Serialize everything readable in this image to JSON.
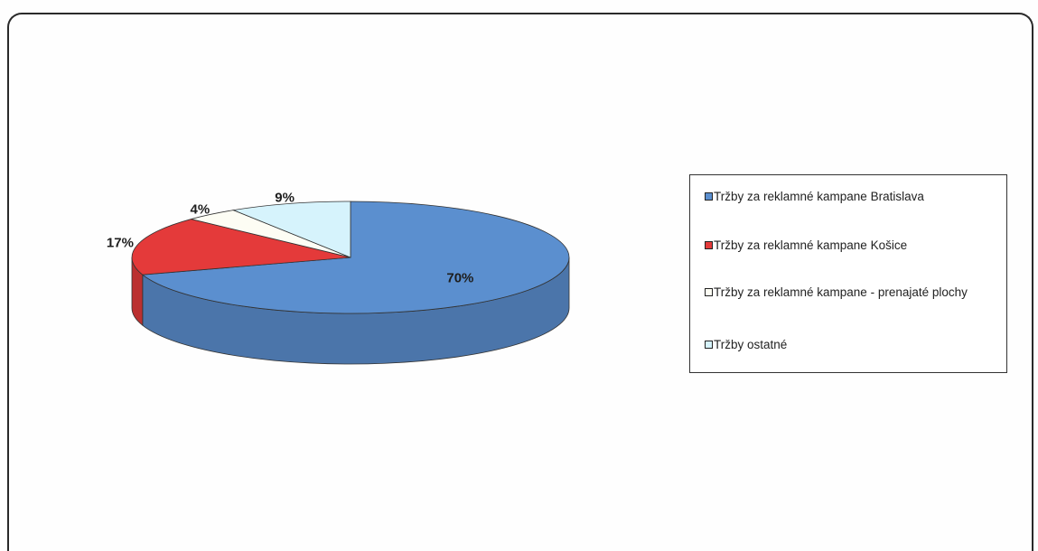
{
  "chart_data": {
    "type": "pie",
    "title": "",
    "style": "3d",
    "legend_position": "right",
    "slices": [
      {
        "label": "Tržby za reklamné kampane Bratislava",
        "value": 70,
        "display": "70%",
        "color": "#5b8fcf"
      },
      {
        "label": "Tržby za reklamné kampane Košice",
        "value": 17,
        "display": "17%",
        "color": "#e43a3a"
      },
      {
        "label": "Tržby za reklamné kampane - prenajaté plochy",
        "value": 4,
        "display": "4%",
        "color": "#fdfdf4"
      },
      {
        "label": "Tržby ostatné",
        "value": 9,
        "display": "9%",
        "color": "#d6f3fc"
      }
    ]
  }
}
